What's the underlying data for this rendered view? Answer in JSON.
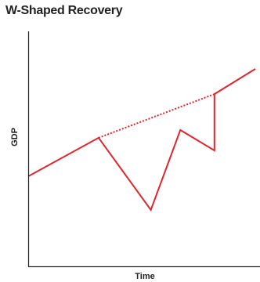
{
  "chart_data": {
    "type": "line",
    "title": "W-Shaped Recovery",
    "xlabel": "Time",
    "ylabel": "GDP",
    "grid": false,
    "legend": "none",
    "xlim": [
      0,
      10
    ],
    "ylim": [
      0,
      10
    ],
    "colors": {
      "line": "#e0262e",
      "axis": "#222222"
    },
    "series": [
      {
        "style": "solid",
        "x": [
          0,
          3.1,
          5.4,
          6.7,
          8.2,
          8.2,
          10
        ],
        "y": [
          3.83,
          5.47,
          2.4,
          5.8,
          4.93,
          7.33,
          8.4
        ]
      },
      {
        "style": "dotted",
        "x": [
          3.1,
          8.2
        ],
        "y": [
          5.47,
          7.33
        ]
      }
    ]
  }
}
